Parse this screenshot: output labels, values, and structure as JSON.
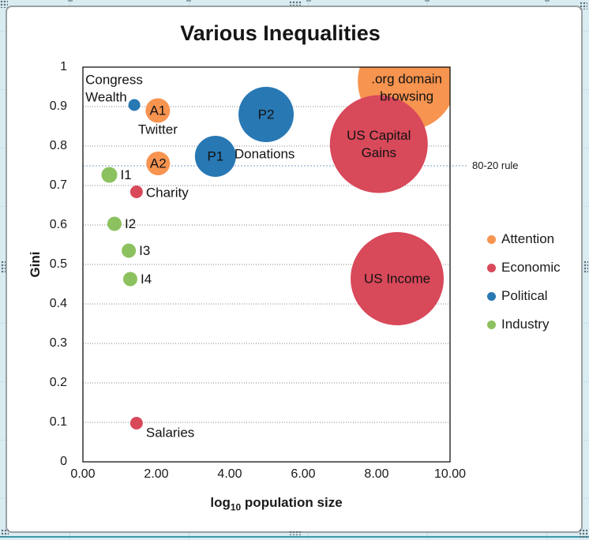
{
  "chrome": {
    "sheet_background": "#D9ECF2",
    "sheet_gridline": "#BFDCE6",
    "bottom_rule_color": "#3D9AAA",
    "chart_border": "#9aa0a3"
  },
  "chart_data": {
    "type": "scatter",
    "subtype": "bubble",
    "title": "Various Inequalities",
    "ylabel": "Gini",
    "xlabel_parts": {
      "pre": "log",
      "sub": "10",
      "post": " population size"
    },
    "xlim": [
      0,
      10
    ],
    "ylim": [
      0,
      1
    ],
    "x_ticks": [
      "0.00",
      "2.00",
      "4.00",
      "6.00",
      "8.00",
      "10.00"
    ],
    "y_ticks": [
      "0",
      "0.1",
      "0.2",
      "0.3",
      "0.4",
      "0.5",
      "0.6",
      "0.7",
      "0.8",
      "0.9",
      "1"
    ],
    "grid": "horizontal-dotted",
    "grid_color": "#848484",
    "legend_position": "right",
    "annotation": {
      "label": "80-20 rule",
      "y": 0.75,
      "color": "#7AA0C8"
    },
    "legend": [
      {
        "label": "Attention",
        "color": "#F79450"
      },
      {
        "label": "Economic",
        "color": "#D8495A"
      },
      {
        "label": "Political",
        "color": "#2878B4"
      },
      {
        "label": "Industry",
        "color": "#8CC15F"
      }
    ],
    "series": [
      {
        "name": "Attention",
        "color": "#F79450",
        "points": [
          {
            "label": "A1 Twitter",
            "x": 2.04,
            "y": 0.89,
            "r": 15.5,
            "labels": [
              {
                "text": "A1",
                "anchor": "middle",
                "dx": 0,
                "dy": 0
              },
              {
                "text": "Twitter",
                "anchor": "middle",
                "dx": 0,
                "dy": 24
              }
            ]
          },
          {
            "label": "A2",
            "x": 2.05,
            "y": 0.756,
            "r": 15,
            "labels": [
              {
                "text": "A2",
                "anchor": "middle",
                "dx": 0,
                "dy": 0
              }
            ]
          },
          {
            "label": ".org domain browsing",
            "x": 8.82,
            "y": 0.964,
            "r": 62,
            "labels": [
              {
                "text": ".org domain\nbrowsing",
                "anchor": "middle",
                "dx": 0,
                "dy": 8
              }
            ]
          }
        ]
      },
      {
        "name": "Economic",
        "color": "#D8495A",
        "points": [
          {
            "label": "US Capital Gains",
            "x": 8.06,
            "y": 0.805,
            "r": 62,
            "labels": [
              {
                "text": "US Capital\nGains",
                "anchor": "middle",
                "dx": 0,
                "dy": 0
              }
            ]
          },
          {
            "label": "US Income",
            "x": 8.56,
            "y": 0.464,
            "r": 59,
            "labels": [
              {
                "text": "US Income",
                "anchor": "middle",
                "dx": 0,
                "dy": 0
              }
            ]
          },
          {
            "label": "Charity",
            "x": 1.46,
            "y": 0.684,
            "r": 8,
            "labels": [
              {
                "text": "Charity",
                "anchor": "start",
                "dx": 12,
                "dy": 1
              }
            ]
          },
          {
            "label": "Salaries",
            "x": 1.46,
            "y": 0.098,
            "r": 8,
            "labels": [
              {
                "text": "Salaries",
                "anchor": "start",
                "dx": 12,
                "dy": 12
              }
            ]
          }
        ]
      },
      {
        "name": "Political",
        "color": "#2878B4",
        "points": [
          {
            "label": "Congress Wealth",
            "x": 1.4,
            "y": 0.904,
            "r": 7.5,
            "labels": [
              {
                "text": "Congress\nWealth",
                "anchor": "start",
                "dx": -62,
                "dy": -21
              }
            ]
          },
          {
            "label": "P1 Donations",
            "x": 3.61,
            "y": 0.774,
            "r": 26,
            "labels": [
              {
                "text": "P1",
                "anchor": "middle",
                "dx": 0,
                "dy": 0
              },
              {
                "text": "Donations",
                "anchor": "start",
                "dx": 24,
                "dy": -3
              }
            ]
          },
          {
            "label": "P2",
            "x": 4.99,
            "y": 0.88,
            "r": 35,
            "labels": [
              {
                "text": "P2",
                "anchor": "middle",
                "dx": 0,
                "dy": 0
              }
            ]
          }
        ]
      },
      {
        "name": "Industry",
        "color": "#8CC15F",
        "points": [
          {
            "label": "I1",
            "x": 0.72,
            "y": 0.727,
            "r": 10,
            "labels": [
              {
                "text": "I1",
                "anchor": "start",
                "dx": 14,
                "dy": 0
              }
            ]
          },
          {
            "label": "I2",
            "x": 0.86,
            "y": 0.603,
            "r": 9,
            "labels": [
              {
                "text": "I2",
                "anchor": "start",
                "dx": 13,
                "dy": 0
              }
            ]
          },
          {
            "label": "I3",
            "x": 1.25,
            "y": 0.535,
            "r": 9,
            "labels": [
              {
                "text": "I3",
                "anchor": "start",
                "dx": 13,
                "dy": 0
              }
            ]
          },
          {
            "label": "I4",
            "x": 1.29,
            "y": 0.463,
            "r": 9,
            "labels": [
              {
                "text": "I4",
                "anchor": "start",
                "dx": 13,
                "dy": 0
              }
            ]
          }
        ]
      }
    ]
  }
}
